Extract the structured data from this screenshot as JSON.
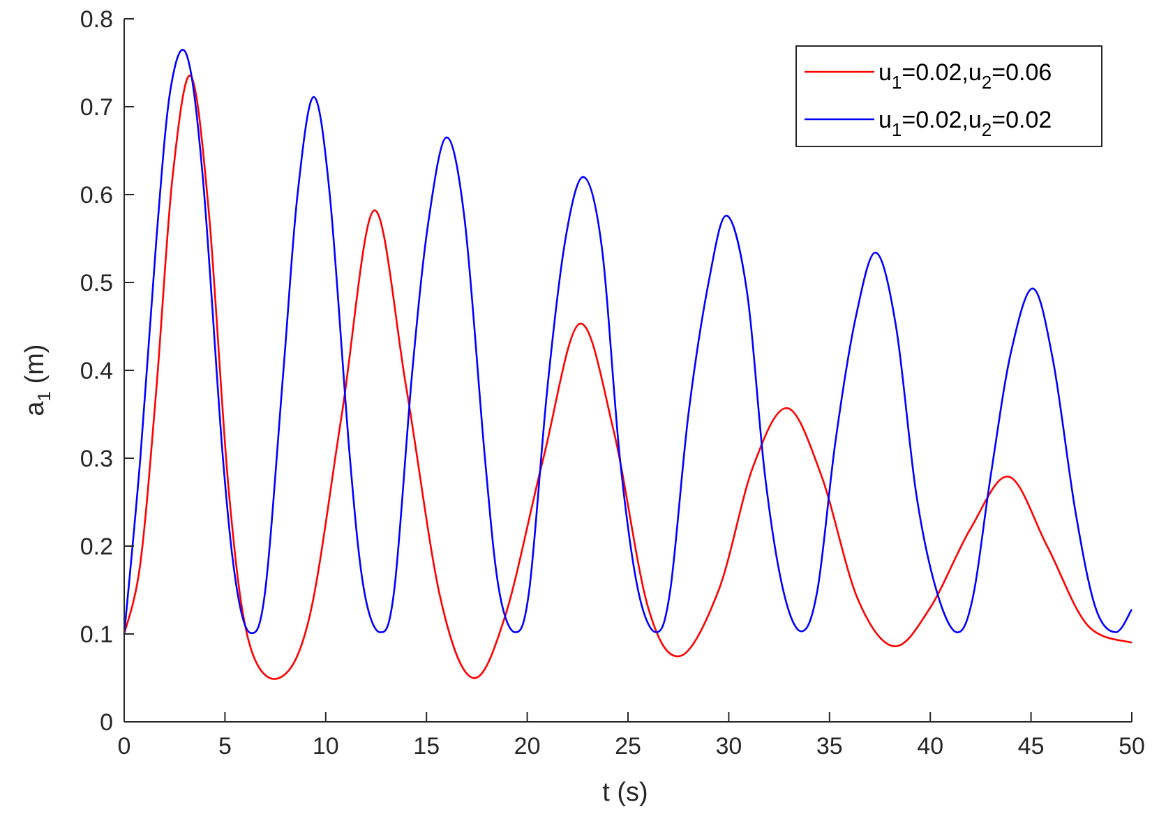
{
  "chart_data": {
    "type": "line",
    "title": "",
    "xlabel": "t (s)",
    "ylabel": {
      "base": "a",
      "sub": "1",
      "unit": " (m)"
    },
    "xlim": [
      0,
      50
    ],
    "ylim": [
      0,
      0.8
    ],
    "xticks": [
      "0",
      "5",
      "10",
      "15",
      "20",
      "25",
      "30",
      "35",
      "40",
      "45",
      "50"
    ],
    "yticks": [
      "0",
      "0.1",
      "0.2",
      "0.3",
      "0.4",
      "0.5",
      "0.6",
      "0.7",
      "0.8"
    ],
    "grid": false,
    "legend_position": "top-right",
    "series": [
      {
        "name": "u1=0.02,u2=0.06",
        "legend_parts": [
          "u",
          "1",
          "=0.02,u",
          "2",
          "=0.06"
        ],
        "color": "#ff0000",
        "x": [
          0,
          0.8,
          1.6,
          2.4,
          3.3,
          4.2,
          5.2,
          6.2,
          7.7,
          9.2,
          10.8,
          12.4,
          14.0,
          15.7,
          17.3,
          18.9,
          20.8,
          22.6,
          24.3,
          26.0,
          27.6,
          29.5,
          31.2,
          32.9,
          34.6,
          36.4,
          38.2,
          40.0,
          42.0,
          43.9,
          45.8,
          47.8,
          50
        ],
        "y": [
          0.1,
          0.18,
          0.38,
          0.62,
          0.735,
          0.58,
          0.26,
          0.09,
          0.05,
          0.12,
          0.35,
          0.582,
          0.38,
          0.14,
          0.05,
          0.12,
          0.3,
          0.453,
          0.33,
          0.13,
          0.075,
          0.15,
          0.29,
          0.357,
          0.28,
          0.14,
          0.086,
          0.13,
          0.22,
          0.279,
          0.2,
          0.11,
          0.09
        ]
      },
      {
        "name": "u1=0.02,u2=0.02",
        "legend_parts": [
          "u",
          "1",
          "=0.02,u",
          "2",
          "=0.02"
        ],
        "color": "#0000ff",
        "x": [
          0,
          0.8,
          1.6,
          2.3,
          3.1,
          3.9,
          4.9,
          5.6,
          6.3,
          7.0,
          7.9,
          8.6,
          9.4,
          10.2,
          11.2,
          11.9,
          12.7,
          13.4,
          14.3,
          15.1,
          16.0,
          16.9,
          17.9,
          18.6,
          19.4,
          20.1,
          21.0,
          21.9,
          22.8,
          23.7,
          24.6,
          25.5,
          26.4,
          27.1,
          28.0,
          29.0,
          29.9,
          30.9,
          31.8,
          32.7,
          33.6,
          34.4,
          35.3,
          36.3,
          37.3,
          38.3,
          39.3,
          40.3,
          41.3,
          42.1,
          43.0,
          44.0,
          45.1,
          46.1,
          47.2,
          48.2,
          49.2,
          50
        ],
        "y": [
          0.1,
          0.3,
          0.55,
          0.72,
          0.759,
          0.62,
          0.3,
          0.15,
          0.101,
          0.15,
          0.4,
          0.6,
          0.711,
          0.6,
          0.3,
          0.15,
          0.102,
          0.15,
          0.4,
          0.57,
          0.665,
          0.57,
          0.3,
          0.15,
          0.102,
          0.15,
          0.38,
          0.55,
          0.62,
          0.54,
          0.3,
          0.15,
          0.102,
          0.15,
          0.35,
          0.5,
          0.576,
          0.49,
          0.28,
          0.15,
          0.103,
          0.15,
          0.32,
          0.46,
          0.534,
          0.45,
          0.26,
          0.15,
          0.102,
          0.14,
          0.28,
          0.42,
          0.493,
          0.41,
          0.24,
          0.13,
          0.102,
          0.128
        ]
      }
    ]
  }
}
